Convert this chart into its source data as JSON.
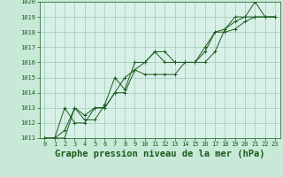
{
  "background_color": "#c8e8d8",
  "plot_bg_color": "#d8f0e8",
  "grid_color": "#a0c8b8",
  "line_color": "#1a5c1a",
  "xlabel": "Graphe pression niveau de la mer (hPa)",
  "xlabel_fontsize": 7.5,
  "xlim": [
    -0.5,
    23.5
  ],
  "ylim": [
    1011,
    1020
  ],
  "xticks": [
    0,
    1,
    2,
    3,
    4,
    5,
    6,
    7,
    8,
    9,
    10,
    11,
    12,
    13,
    14,
    15,
    16,
    17,
    18,
    19,
    20,
    21,
    22,
    23
  ],
  "yticks": [
    1011,
    1012,
    1013,
    1014,
    1015,
    1016,
    1017,
    1018,
    1019,
    1020
  ],
  "series": [
    [
      1011.0,
      1011.0,
      1011.0,
      1013.0,
      1012.2,
      1012.2,
      1013.2,
      1015.0,
      1014.2,
      1016.0,
      1016.0,
      1016.7,
      1016.7,
      1016.0,
      1016.0,
      1016.0,
      1016.0,
      1016.7,
      1018.2,
      1019.0,
      1019.0,
      1020.0,
      1019.0,
      1019.0
    ],
    [
      1011.0,
      1011.0,
      1013.0,
      1012.0,
      1012.0,
      1013.0,
      1013.0,
      1014.0,
      1014.0,
      1015.5,
      1015.2,
      1015.2,
      1015.2,
      1015.2,
      1016.0,
      1016.0,
      1017.0,
      1018.0,
      1018.0,
      1018.2,
      1018.7,
      1019.0,
      1019.0,
      1019.0
    ],
    [
      1011.0,
      1011.0,
      1011.5,
      1013.0,
      1012.5,
      1013.0,
      1013.0,
      1014.0,
      1015.0,
      1015.5,
      1016.0,
      1016.7,
      1016.0,
      1016.0,
      1016.0,
      1016.0,
      1016.7,
      1018.0,
      1018.2,
      1018.7,
      1019.0,
      1019.0,
      1019.0,
      1019.0
    ]
  ],
  "tick_fontsize": 5.0,
  "linewidth": 0.7,
  "markersize": 3.0,
  "markeredgewidth": 0.7
}
